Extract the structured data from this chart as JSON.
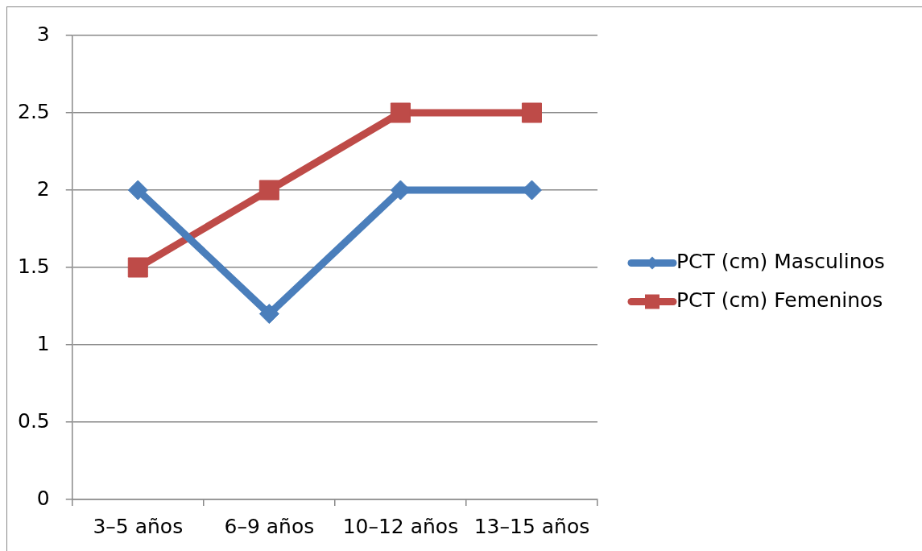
{
  "chart_data": {
    "type": "line",
    "categories": [
      "3–5 años",
      "6–9 años",
      "10–12 años",
      "13–15 años"
    ],
    "series": [
      {
        "name": "PCT (cm) Masculinos",
        "color": "#4a7ebb",
        "marker": "diamond",
        "values": [
          2,
          1.2,
          2,
          2
        ]
      },
      {
        "name": "PCT (cm) Femeninos",
        "color": "#be4b48",
        "marker": "square",
        "values": [
          1.5,
          2,
          2.5,
          2.5
        ]
      }
    ],
    "ylim": [
      0,
      3
    ],
    "yticks": [
      0,
      0.5,
      1,
      1.5,
      2,
      2.5,
      3
    ],
    "grid": "y",
    "legend": "right",
    "line_style": "solid"
  }
}
